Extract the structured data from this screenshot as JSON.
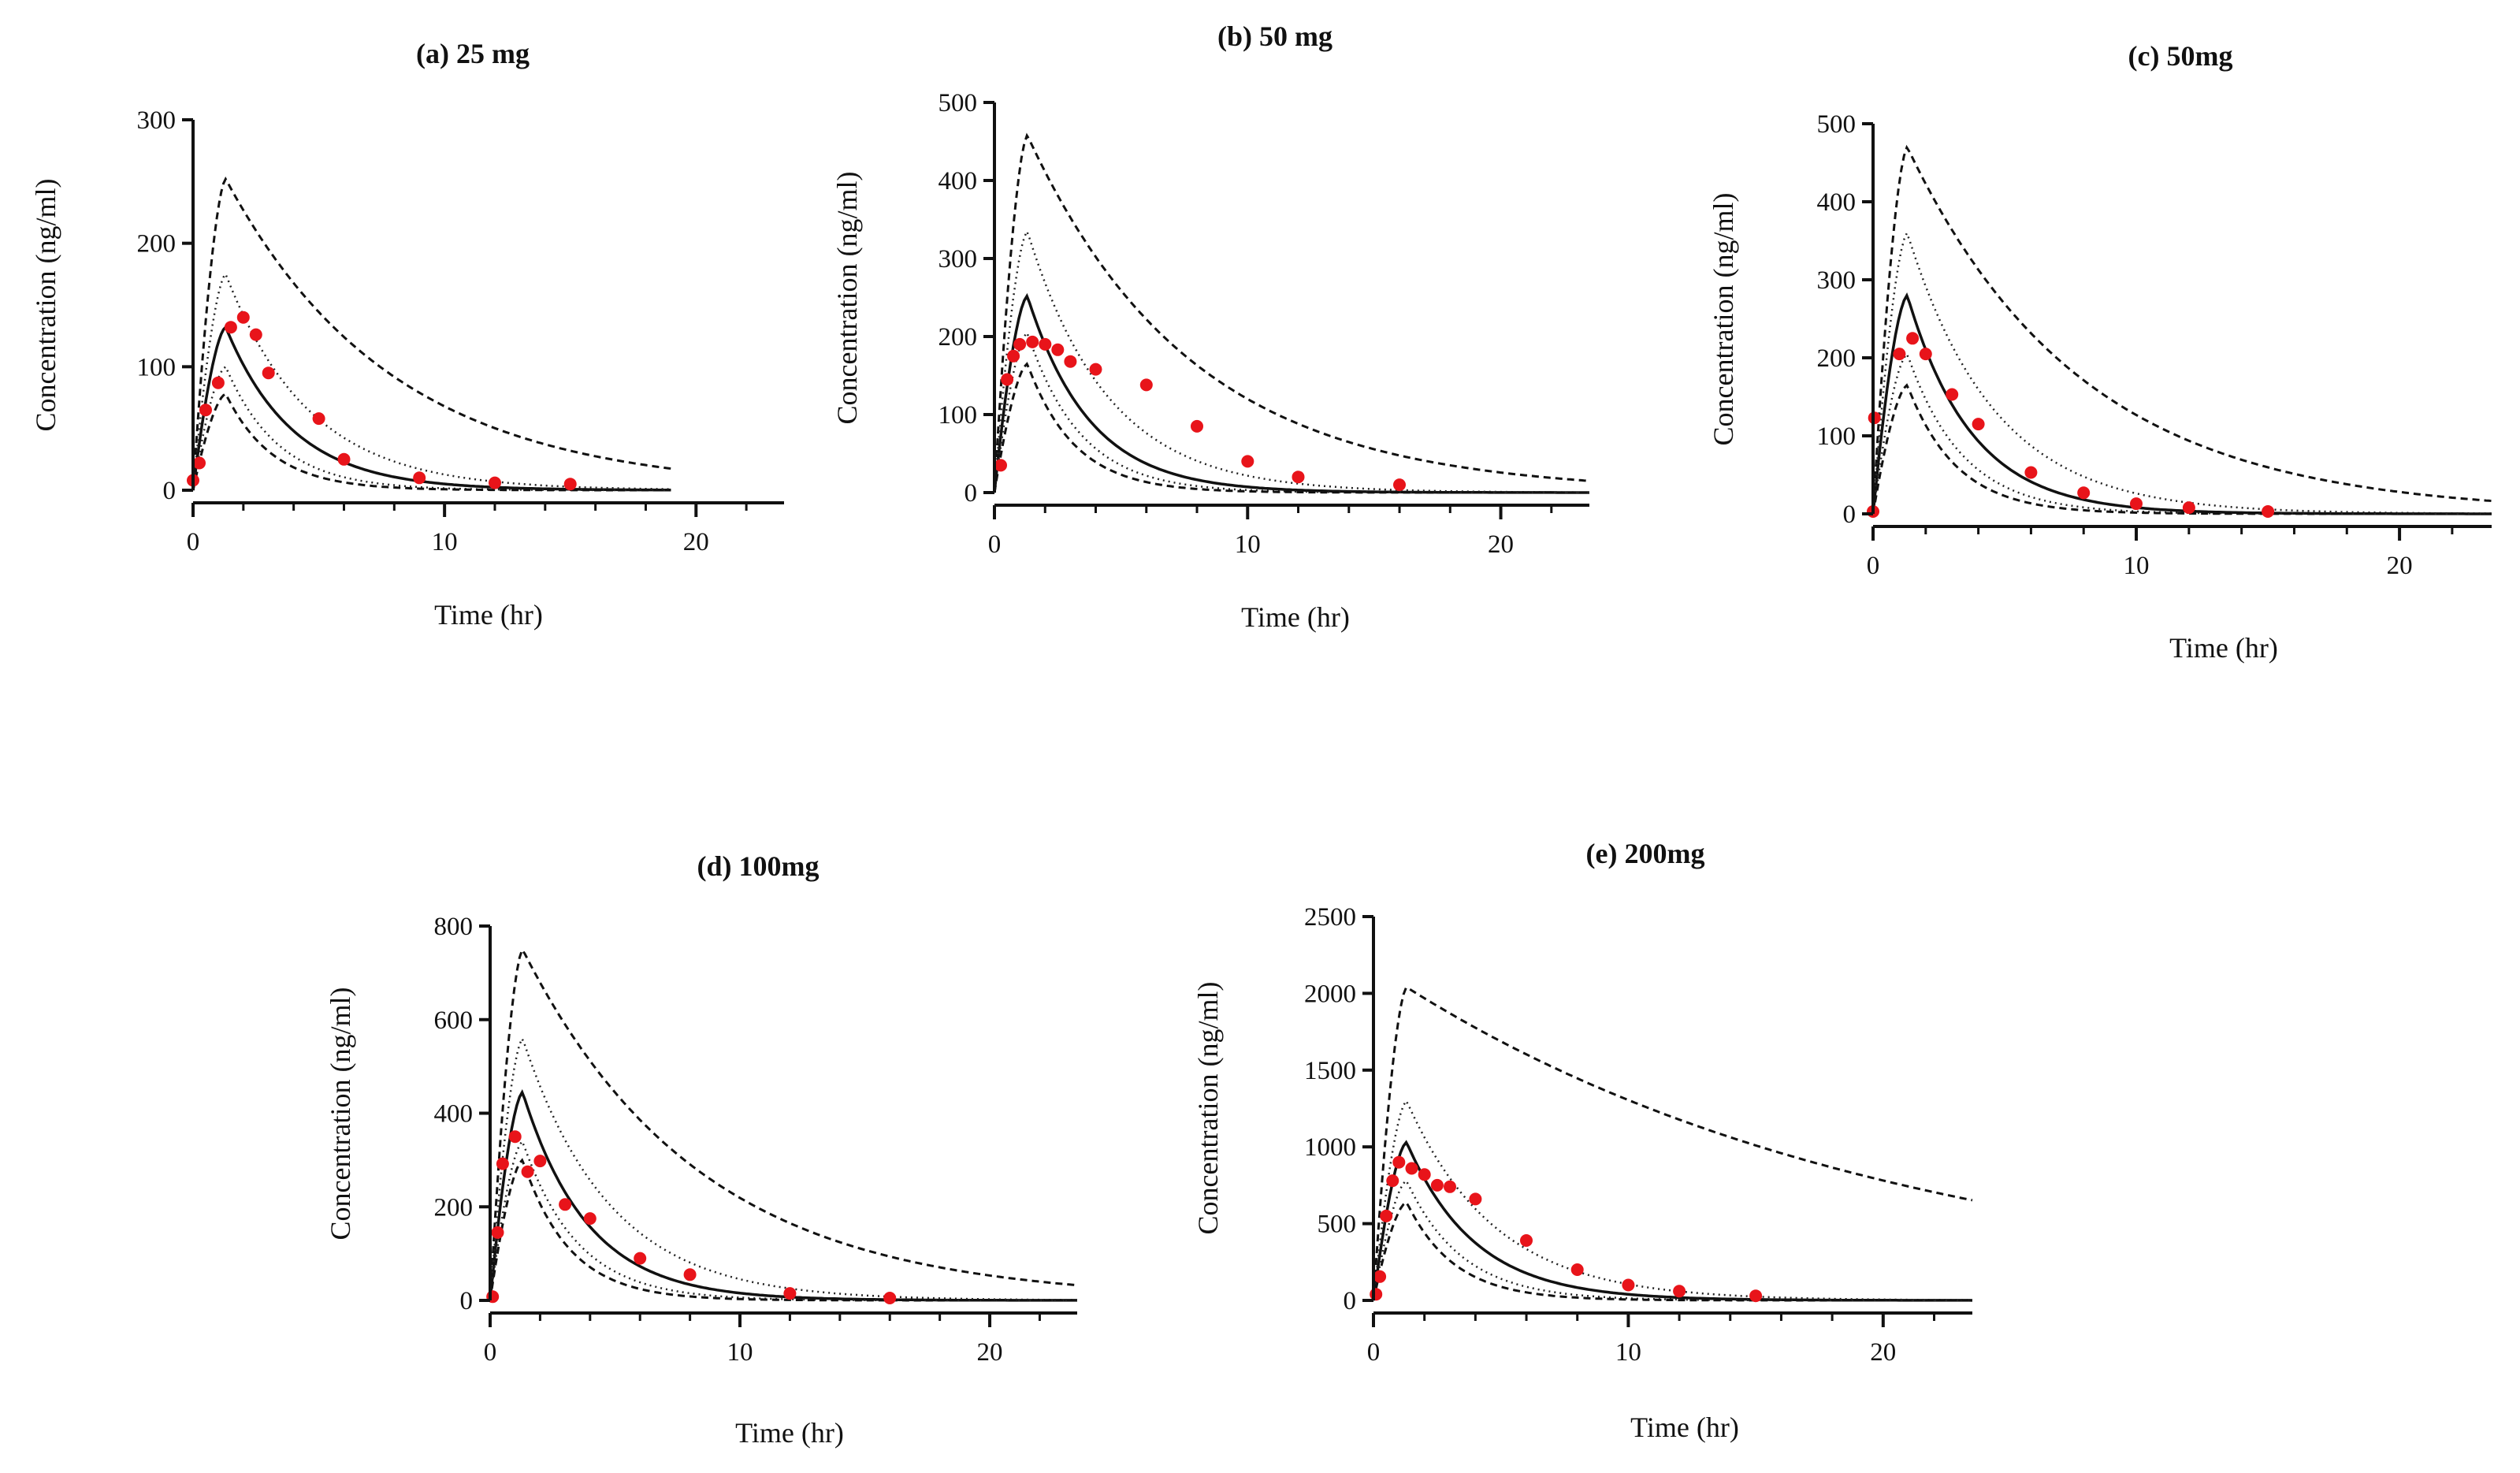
{
  "colors": {
    "observed": "#e8141a",
    "median": "#111111",
    "bounds": "#111111"
  },
  "shared_x": {
    "label": "Time (hr)",
    "ticks": [
      0,
      10,
      20
    ],
    "xlim": [
      0,
      23.5
    ]
  },
  "shared_y": {
    "label": "Concentration (ng/ml)"
  },
  "chart_data": [
    {
      "type": "line",
      "title": "(a) 25 mg",
      "xlabel": "Time (hr)",
      "ylabel": "Concentration (ng/ml)",
      "xlim": [
        0,
        23.5
      ],
      "ylim": [
        0,
        300
      ],
      "xticks": [
        0,
        10,
        20
      ],
      "yticks": [
        0,
        100,
        200,
        300
      ],
      "peak_time": 1.3,
      "curve_end": 19,
      "series": [
        {
          "name": "observed",
          "style": "points",
          "x": [
            0,
            0.25,
            0.5,
            1,
            1.5,
            2,
            2.5,
            3,
            5,
            6,
            9,
            12,
            15
          ],
          "y": [
            8,
            22,
            65,
            87,
            132,
            140,
            126,
            95,
            58,
            25,
            10,
            6,
            5
          ]
        },
        {
          "name": "median",
          "style": "solid",
          "peak": 132,
          "half_life": 1.85
        },
        {
          "name": "upper 95%",
          "style": "dashed",
          "peak": 252,
          "half_life": 4.6
        },
        {
          "name": "upper 75%",
          "style": "dotted",
          "peak": 175,
          "half_life": 2.3
        },
        {
          "name": "lower 75%",
          "style": "dotted",
          "peak": 100,
          "half_life": 1.45
        },
        {
          "name": "lower 95%",
          "style": "dashed",
          "peak": 78,
          "half_life": 1.3
        }
      ]
    },
    {
      "type": "line",
      "title": "(b) 50 mg",
      "xlabel": "Time (hr)",
      "ylabel": "Concentration (ng/ml)",
      "xlim": [
        0,
        23.5
      ],
      "ylim": [
        0,
        500
      ],
      "xticks": [
        0,
        10,
        20
      ],
      "yticks": [
        0,
        100,
        200,
        300,
        400,
        500
      ],
      "peak_time": 1.3,
      "curve_end": 23.5,
      "series": [
        {
          "name": "observed",
          "style": "points",
          "x": [
            0.25,
            0.5,
            0.75,
            1,
            1.5,
            2,
            2.5,
            3,
            4,
            6,
            8,
            10,
            12,
            16
          ],
          "y": [
            35,
            145,
            175,
            190,
            193,
            190,
            183,
            168,
            158,
            138,
            85,
            40,
            20,
            10
          ]
        },
        {
          "name": "median",
          "style": "solid",
          "peak": 252,
          "half_life": 1.7
        },
        {
          "name": "upper 95%",
          "style": "dashed",
          "peak": 458,
          "half_life": 4.5
        },
        {
          "name": "upper 75%",
          "style": "dotted",
          "peak": 335,
          "half_life": 2.2
        },
        {
          "name": "lower 75%",
          "style": "dotted",
          "peak": 205,
          "half_life": 1.45
        },
        {
          "name": "lower 95%",
          "style": "dashed",
          "peak": 165,
          "half_life": 1.3
        }
      ]
    },
    {
      "type": "line",
      "title": "(c)  50mg",
      "xlabel": "Time (hr)",
      "ylabel": "Concentration (ng/ml)",
      "xlim": [
        0,
        23.5
      ],
      "ylim": [
        0,
        500
      ],
      "xticks": [
        0,
        10,
        20
      ],
      "yticks": [
        0,
        100,
        200,
        300,
        400,
        500
      ],
      "peak_time": 1.3,
      "curve_end": 23.5,
      "series": [
        {
          "name": "observed",
          "style": "points",
          "x": [
            0,
            0.05,
            1,
            1.5,
            2,
            3,
            4,
            6,
            8,
            10,
            12,
            15
          ],
          "y": [
            3,
            123,
            205,
            225,
            205,
            153,
            115,
            53,
            27,
            13,
            8,
            3
          ]
        },
        {
          "name": "median",
          "style": "solid",
          "peak": 280,
          "half_life": 1.7
        },
        {
          "name": "upper 95%",
          "style": "dashed",
          "peak": 470,
          "half_life": 4.6
        },
        {
          "name": "upper 75%",
          "style": "dotted",
          "peak": 360,
          "half_life": 2.3
        },
        {
          "name": "lower 75%",
          "style": "dotted",
          "peak": 205,
          "half_life": 1.45
        },
        {
          "name": "lower 95%",
          "style": "dashed",
          "peak": 165,
          "half_life": 1.3
        }
      ]
    },
    {
      "type": "line",
      "title": "(d) 100mg",
      "xlabel": "Time (hr)",
      "ylabel": "Concentration (ng/ml)",
      "xlim": [
        0,
        23.5
      ],
      "ylim": [
        0,
        800
      ],
      "xticks": [
        0,
        10,
        20
      ],
      "yticks": [
        0,
        200,
        400,
        600,
        800
      ],
      "peak_time": 1.3,
      "curve_end": 23.5,
      "series": [
        {
          "name": "observed",
          "style": "points",
          "x": [
            0.1,
            0.3,
            0.5,
            1,
            1.5,
            2,
            3,
            4,
            6,
            8,
            12,
            16
          ],
          "y": [
            8,
            145,
            292,
            350,
            275,
            298,
            205,
            175,
            90,
            55,
            15,
            5
          ]
        },
        {
          "name": "median",
          "style": "solid",
          "peak": 445,
          "half_life": 1.8
        },
        {
          "name": "upper 95%",
          "style": "dashed",
          "peak": 750,
          "half_life": 4.9
        },
        {
          "name": "upper 75%",
          "style": "dotted",
          "peak": 560,
          "half_life": 2.4
        },
        {
          "name": "lower 75%",
          "style": "dotted",
          "peak": 340,
          "half_life": 1.5
        },
        {
          "name": "lower 95%",
          "style": "dashed",
          "peak": 300,
          "half_life": 1.3
        }
      ]
    },
    {
      "type": "line",
      "title": "(e) 200mg",
      "xlabel": "Time (hr)",
      "ylabel": "Concentration (ng/ml)",
      "xlim": [
        0,
        23.5
      ],
      "ylim": [
        0,
        2500
      ],
      "xticks": [
        0,
        10,
        20
      ],
      "yticks": [
        0,
        500,
        1000,
        1500,
        2000,
        2500
      ],
      "peak_time": 1.3,
      "curve_end": 23.5,
      "series": [
        {
          "name": "observed",
          "style": "points",
          "x": [
            0.1,
            0.25,
            0.5,
            0.75,
            1,
            1.5,
            2,
            2.5,
            3,
            4,
            6,
            8,
            10,
            12,
            15
          ],
          "y": [
            40,
            155,
            550,
            780,
            900,
            860,
            820,
            750,
            740,
            660,
            390,
            200,
            100,
            60,
            30
          ]
        },
        {
          "name": "median",
          "style": "solid",
          "peak": 1030,
          "half_life": 1.85
        },
        {
          "name": "upper 95%",
          "style": "dashed",
          "peak": 2040,
          "half_life": 13.5
        },
        {
          "name": "upper 75%",
          "style": "dotted",
          "peak": 1300,
          "half_life": 2.4
        },
        {
          "name": "lower 75%",
          "style": "dotted",
          "peak": 780,
          "half_life": 1.5
        },
        {
          "name": "lower 95%",
          "style": "dashed",
          "peak": 640,
          "half_life": 1.3
        }
      ]
    }
  ]
}
